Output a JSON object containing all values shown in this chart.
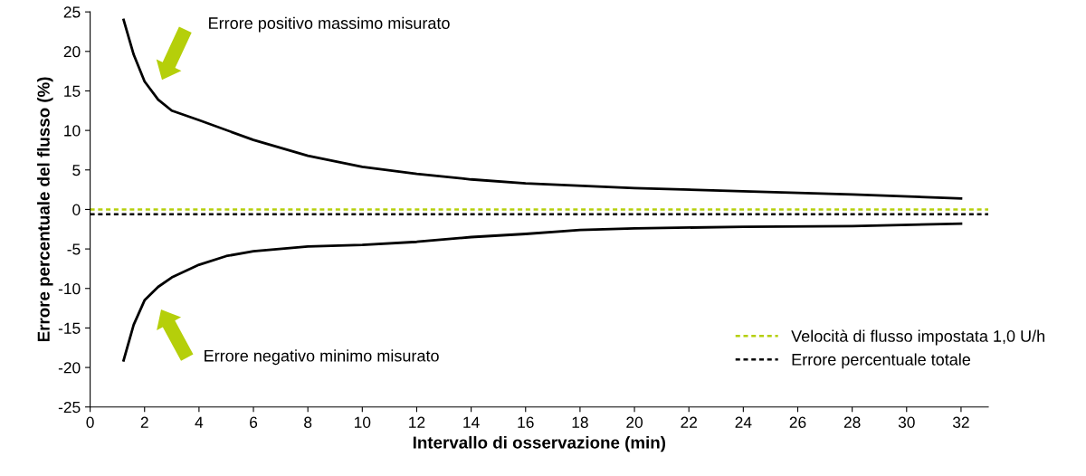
{
  "chart_data": {
    "type": "line",
    "xlabel": "Intervallo di osservazione (min)",
    "ylabel": "Errore percentuale del flusso (%)",
    "xlim": [
      0,
      33
    ],
    "xticks": [
      0,
      2,
      4,
      6,
      8,
      10,
      12,
      14,
      16,
      18,
      20,
      22,
      24,
      26,
      28,
      30,
      32
    ],
    "ylim": [
      -25,
      25
    ],
    "yticks": [
      -25,
      -20,
      -15,
      -10,
      -5,
      0,
      5,
      10,
      15,
      20,
      25
    ],
    "grid": false,
    "legend": "bottom right",
    "marker": "none",
    "series": [
      {
        "color": "#000000",
        "line_style": "solid",
        "x": [
          1.23,
          1.6,
          2.0,
          2.5,
          3,
          4,
          6,
          8,
          10,
          12,
          14,
          16,
          20,
          24,
          28,
          32
        ],
        "values": [
          24,
          19.6,
          16.2,
          13.9,
          12.5,
          11.3,
          8.8,
          6.8,
          5.4,
          4.5,
          3.8,
          3.3,
          2.7,
          2.3,
          1.9,
          1.4
        ]
      },
      {
        "color": "#000000",
        "line_style": "solid",
        "x": [
          1.23,
          1.6,
          2.0,
          2.5,
          3,
          4,
          5,
          6,
          8,
          10,
          12,
          14,
          16,
          18,
          20,
          24,
          28,
          32
        ],
        "values": [
          -19.1,
          -14.6,
          -11.5,
          -9.8,
          -8.6,
          -7.0,
          -5.9,
          -5.3,
          -4.7,
          -4.5,
          -4.1,
          -3.5,
          -3.1,
          -2.6,
          -2.4,
          -2.2,
          -2.1,
          -1.8
        ]
      },
      {
        "name": "Velocità di flusso impostata 1,0 U/h",
        "color": "#b5cf0a",
        "line_style": "dotted",
        "x": [
          0,
          33
        ],
        "values": [
          0,
          0
        ]
      },
      {
        "name": "Errore percentuale totale",
        "color": "#000000",
        "line_style": "dotted",
        "x": [
          0,
          33
        ],
        "values": [
          -0.6,
          -0.6
        ]
      }
    ],
    "annotations": [
      "Errore positivo massimo misurato",
      "Errore negativo minimo misurato"
    ]
  }
}
